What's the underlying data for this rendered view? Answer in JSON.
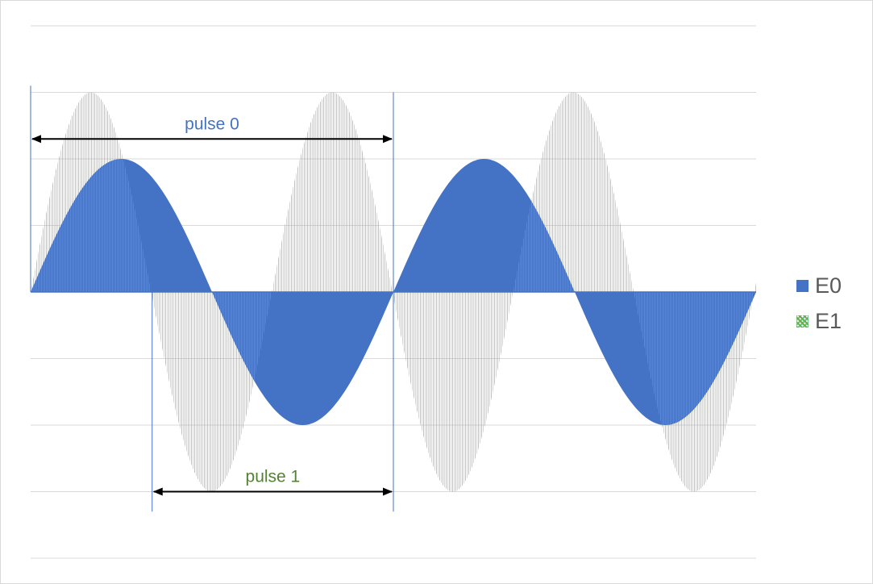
{
  "chart_data": {
    "type": "area",
    "title": "",
    "xlabel": "",
    "ylabel": "",
    "grid": true,
    "legend": "right",
    "x_range": [
      0,
      4
    ],
    "ylim": [
      -2,
      2
    ],
    "y_gridlines": [
      -2,
      -1.5,
      -1,
      -0.5,
      0,
      0.5,
      1,
      1.5,
      2
    ],
    "series": [
      {
        "name": "E0",
        "function": "sin",
        "amplitude": 1,
        "period": 2,
        "color": "#4472c4",
        "fill": "solid"
      },
      {
        "name": "E1",
        "function": "sin",
        "amplitude": 1.5,
        "period": 1.33,
        "color": "#70ad47",
        "fill": "pattern"
      }
    ],
    "annotations": [
      {
        "label": "pulse 0",
        "color": "#4472c4",
        "x_start": 0,
        "x_end": 2,
        "y": 1.15
      },
      {
        "label": "pulse 1",
        "color": "#548235",
        "x_start": 0.67,
        "x_end": 2.0,
        "y": -1.5
      }
    ]
  },
  "legend": {
    "e0_label": "E0",
    "e1_label": "E1"
  }
}
